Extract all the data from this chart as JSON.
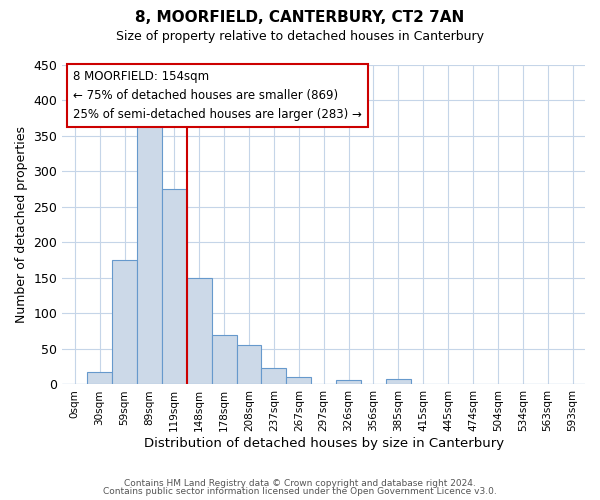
{
  "title": "8, MOORFIELD, CANTERBURY, CT2 7AN",
  "subtitle": "Size of property relative to detached houses in Canterbury",
  "xlabel": "Distribution of detached houses by size in Canterbury",
  "ylabel": "Number of detached properties",
  "bar_color": "#ccd9e8",
  "bar_edgecolor": "#6699cc",
  "bin_labels": [
    "0sqm",
    "30sqm",
    "59sqm",
    "89sqm",
    "119sqm",
    "148sqm",
    "178sqm",
    "208sqm",
    "237sqm",
    "267sqm",
    "297sqm",
    "326sqm",
    "356sqm",
    "385sqm",
    "415sqm",
    "445sqm",
    "474sqm",
    "504sqm",
    "534sqm",
    "563sqm",
    "593sqm"
  ],
  "bar_heights": [
    0,
    18,
    176,
    365,
    275,
    150,
    70,
    55,
    23,
    10,
    0,
    6,
    0,
    8,
    0,
    0,
    0,
    0,
    1,
    0,
    0
  ],
  "vline_color": "#cc0000",
  "ylim": [
    0,
    450
  ],
  "yticks": [
    0,
    50,
    100,
    150,
    200,
    250,
    300,
    350,
    400,
    450
  ],
  "annotation_title": "8 MOORFIELD: 154sqm",
  "annotation_line1": "← 75% of detached houses are smaller (869)",
  "annotation_line2": "25% of semi-detached houses are larger (283) →",
  "annotation_box_color": "#cc0000",
  "footer1": "Contains HM Land Registry data © Crown copyright and database right 2024.",
  "footer2": "Contains public sector information licensed under the Open Government Licence v3.0."
}
